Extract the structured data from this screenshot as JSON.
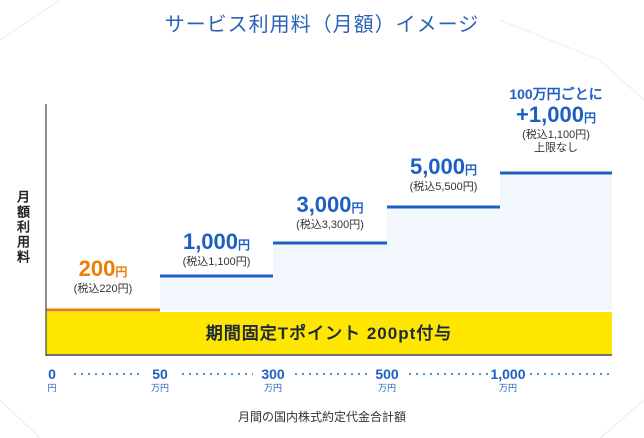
{
  "title": "サービス利用料（月額）イメージ",
  "ylabel": "月額利用料",
  "xlabel": "月間の国内株式約定代金合計額",
  "banner": "期間固定Tポイント 200pt付与",
  "colors": {
    "title": "#2a62b8",
    "blue": "#1e5fc2",
    "orange": "#ef7d00",
    "banner": "#ffe600",
    "area": "#f2f7fd"
  },
  "chart_data": {
    "type": "line",
    "step": true,
    "title": "サービス利用料（月額）イメージ",
    "xlabel": "月間の国内株式約定代金合計額",
    "ylabel": "月額利用料",
    "x_ticks": [
      {
        "num": "0",
        "unit": "円"
      },
      {
        "num": "50",
        "unit": "万円"
      },
      {
        "num": "300",
        "unit": "万円"
      },
      {
        "num": "500",
        "unit": "万円"
      },
      {
        "num": "1,000",
        "unit": "万円"
      }
    ],
    "steps": [
      {
        "from": "0",
        "to": "50万円",
        "fee": 200,
        "fee_text": "200",
        "unit": "円",
        "tax_text": "(税込220円)"
      },
      {
        "from": "50万円",
        "to": "300万円",
        "fee": 1000,
        "fee_text": "1,000",
        "unit": "円",
        "tax_text": "(税込1,100円)"
      },
      {
        "from": "300万円",
        "to": "500万円",
        "fee": 3000,
        "fee_text": "3,000",
        "unit": "円",
        "tax_text": "(税込3,300円)"
      },
      {
        "from": "500万円",
        "to": "1,000万円",
        "fee": 5000,
        "fee_text": "5,000",
        "unit": "円",
        "tax_text": "(税込5,500円)"
      },
      {
        "from": "1,000万円",
        "to": "",
        "fee": null,
        "top_text": "100万円ごとに",
        "fee_text": "+1,000",
        "unit": "円",
        "tax_text": "(税込1,100円)",
        "note": "上限なし"
      }
    ]
  }
}
